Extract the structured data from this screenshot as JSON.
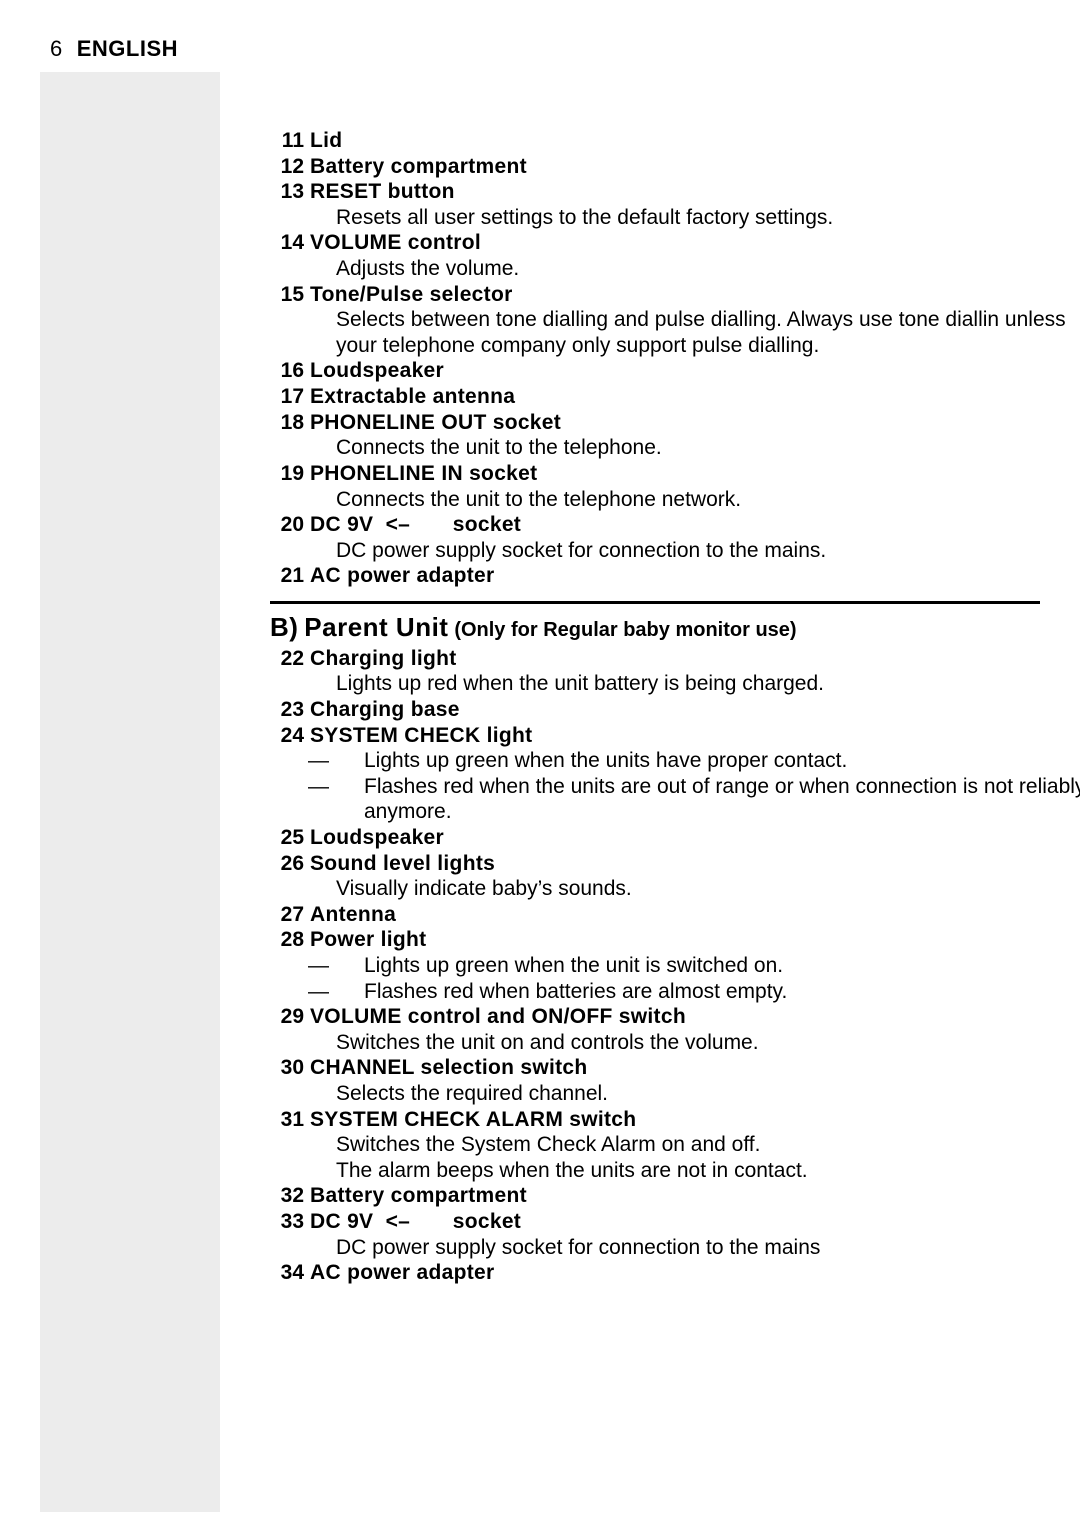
{
  "page": {
    "number": "6",
    "language": "ENGLISH",
    "grey_column_color": "#ececec",
    "text_color": "#000000",
    "background_color": "#ffffff",
    "body_fontsize_pt": 16,
    "header_fontsize_pt": 16,
    "section_fontsize_pt": 19
  },
  "items_a": [
    {
      "n": "11",
      "label": "Lid"
    },
    {
      "n": "12",
      "label": "Battery compartment"
    },
    {
      "n": "13",
      "label": "RESET button",
      "desc": [
        "Resets all user settings to the default factory settings."
      ]
    },
    {
      "n": "14",
      "label": "VOLUME control",
      "desc": [
        "Adjusts the volume."
      ]
    },
    {
      "n": "15",
      "label": "Tone/Pulse selector",
      "desc": [
        "Selects between tone dialling and pulse dialling. Always use tone diallin unless your telephone company only support pulse dialling."
      ]
    },
    {
      "n": "16",
      "label": "Loudspeaker"
    },
    {
      "n": "17",
      "label": "Extractable antenna"
    },
    {
      "n": "18",
      "label": "PHONELINE OUT socket",
      "desc": [
        "Connects the unit to the telephone."
      ]
    },
    {
      "n": "19",
      "label": "PHONELINE IN socket",
      "desc": [
        "Connects the unit to the telephone network."
      ]
    },
    {
      "n": "20",
      "label": "DC 9V  <–  socket",
      "desc": [
        "DC power supply socket for connection to the mains."
      ]
    },
    {
      "n": "21",
      "label": "AC power adapter"
    }
  ],
  "section_b": {
    "letter": "B)",
    "title": "Parent Unit",
    "note": "(Only for Regular baby monitor use)"
  },
  "items_b": [
    {
      "n": "22",
      "label": "Charging light",
      "desc": [
        "Lights up red when the unit battery is being charged."
      ]
    },
    {
      "n": "23",
      "label": "Charging base"
    },
    {
      "n": "24",
      "label": "SYSTEM CHECK light",
      "bullets": [
        "Lights up green when the units have proper contact.",
        "Flashes red when the units are out of range or when connection is not reliably anymore."
      ]
    },
    {
      "n": "25",
      "label": "Loudspeaker"
    },
    {
      "n": "26",
      "label": "Sound level lights",
      "desc": [
        "Visually indicate baby’s sounds."
      ]
    },
    {
      "n": "27",
      "label": "Antenna"
    },
    {
      "n": "28",
      "label": "Power light",
      "bullets": [
        "Lights up green when the unit is switched on.",
        "Flashes red when batteries are almost empty."
      ]
    },
    {
      "n": "29",
      "label": "VOLUME control and ON/OFF switch",
      "desc": [
        "Switches the unit on and controls the volume."
      ]
    },
    {
      "n": "30",
      "label": "CHANNEL selection switch",
      "desc": [
        "Selects the required channel."
      ]
    },
    {
      "n": "31",
      "label": "SYSTEM CHECK ALARM switch",
      "desc": [
        "Switches the System Check Alarm on and off.",
        "The alarm beeps when the units are not in contact."
      ]
    },
    {
      "n": "32",
      "label": "Battery compartment"
    },
    {
      "n": "33",
      "label": "DC 9V  <–  socket",
      "desc": [
        "DC power supply socket for connection to the mains"
      ]
    },
    {
      "n": "34",
      "label": "AC power adapter"
    }
  ]
}
